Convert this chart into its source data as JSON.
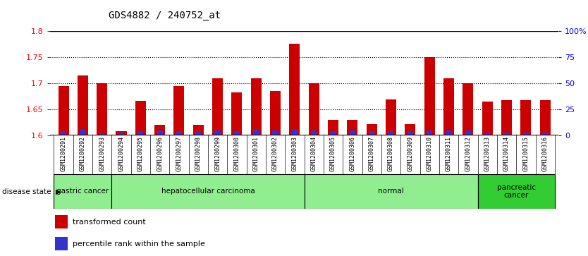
{
  "title": "GDS4882 / 240752_at",
  "samples": [
    "GSM1200291",
    "GSM1200292",
    "GSM1200293",
    "GSM1200294",
    "GSM1200295",
    "GSM1200296",
    "GSM1200297",
    "GSM1200298",
    "GSM1200299",
    "GSM1200300",
    "GSM1200301",
    "GSM1200302",
    "GSM1200303",
    "GSM1200304",
    "GSM1200305",
    "GSM1200306",
    "GSM1200307",
    "GSM1200308",
    "GSM1200309",
    "GSM1200310",
    "GSM1200311",
    "GSM1200312",
    "GSM1200313",
    "GSM1200314",
    "GSM1200315",
    "GSM1200316"
  ],
  "transformed_count": [
    1.695,
    1.715,
    1.7,
    1.608,
    1.666,
    1.621,
    1.695,
    1.621,
    1.71,
    1.683,
    1.71,
    1.685,
    1.775,
    1.7,
    1.63,
    1.63,
    1.622,
    1.669,
    1.622,
    1.75,
    1.71,
    1.7,
    1.665,
    1.668,
    1.668,
    1.668
  ],
  "percentile_rank": [
    4,
    6,
    2,
    3,
    4,
    5,
    4,
    4,
    5,
    4,
    6,
    5,
    6,
    5,
    4,
    5,
    4,
    4,
    4,
    5,
    5,
    5,
    3,
    3,
    3,
    3
  ],
  "groups": [
    {
      "label": "gastric cancer",
      "start": 0,
      "end": 3,
      "color": "#90EE90",
      "dark": false
    },
    {
      "label": "hepatocellular carcinoma",
      "start": 3,
      "end": 13,
      "color": "#90EE90",
      "dark": false
    },
    {
      "label": "normal",
      "start": 13,
      "end": 22,
      "color": "#90EE90",
      "dark": false
    },
    {
      "label": "pancreatic\ncancer",
      "start": 22,
      "end": 26,
      "color": "#32CD32",
      "dark": true
    }
  ],
  "ylim_left": [
    1.6,
    1.8
  ],
  "ylim_right": [
    0,
    100
  ],
  "yticks_left": [
    1.6,
    1.65,
    1.7,
    1.75,
    1.8
  ],
  "ytick_labels_left": [
    "1.6",
    "1.65",
    "1.7",
    "1.75",
    "1.8"
  ],
  "yticks_right": [
    0,
    25,
    50,
    75,
    100
  ],
  "ytick_labels_right": [
    "0",
    "25",
    "50",
    "75",
    "100%"
  ],
  "bar_color_red": "#CC0000",
  "bar_color_blue": "#3333CC",
  "xtick_bg": "#C8C8C8",
  "plot_bg": "#FFFFFF",
  "bar_width": 0.55
}
